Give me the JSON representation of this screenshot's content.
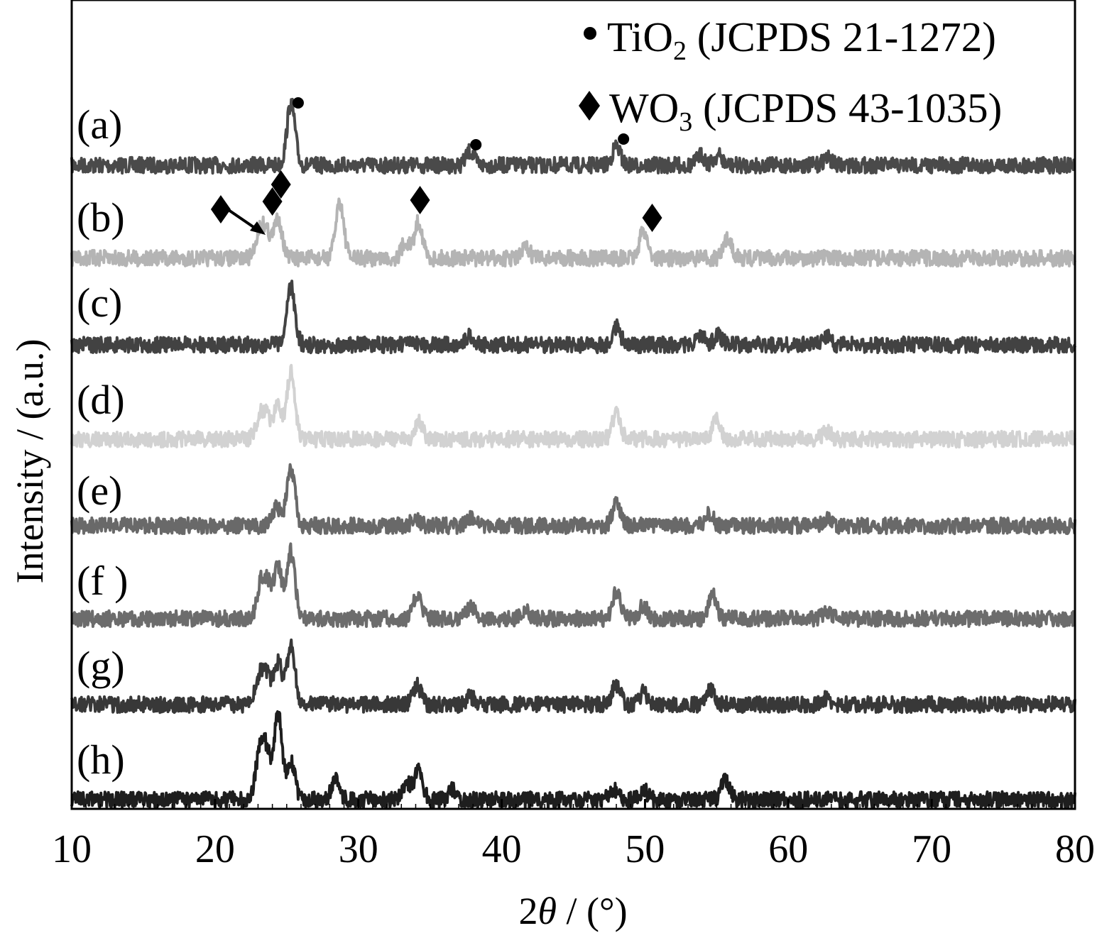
{
  "chart_data": {
    "type": "line",
    "xlabel": {
      "prefix": "2",
      "symbol": "θ",
      "suffix": " / (°)"
    },
    "ylabel": "Intensity / (a.u.)",
    "xlim": [
      10,
      80
    ],
    "x_ticks": [
      10,
      20,
      30,
      40,
      50,
      60,
      70,
      80
    ],
    "x_tick_labels": [
      "10",
      "20",
      "30",
      "40",
      "50",
      "60",
      "70",
      "80"
    ],
    "y_ticks_shown": false,
    "legend": {
      "position": "top-right",
      "entries": [
        {
          "marker": "circle",
          "label_main": "TiO",
          "label_sub": "2",
          "label_rest": " (JCPDS 21-1272)"
        },
        {
          "marker": "diamond",
          "label_main": "WO",
          "label_sub": "3",
          "label_rest": " (JCPDS 43-1035)"
        }
      ]
    },
    "series": [
      {
        "name": "(a)",
        "color": "#4a4a4a",
        "peaks": [
          [
            25.3,
            1.0
          ],
          [
            37.8,
            0.22
          ],
          [
            48.0,
            0.3
          ],
          [
            53.9,
            0.16
          ],
          [
            55.1,
            0.16
          ],
          [
            62.7,
            0.12
          ]
        ]
      },
      {
        "name": "(b)",
        "color": "#b4b4b4",
        "peaks": [
          [
            23.1,
            0.38
          ],
          [
            23.6,
            0.38
          ],
          [
            24.4,
            0.6
          ],
          [
            28.7,
            0.85
          ],
          [
            33.3,
            0.25
          ],
          [
            34.2,
            0.55
          ],
          [
            41.7,
            0.15
          ],
          [
            49.9,
            0.42
          ],
          [
            55.8,
            0.3
          ]
        ]
      },
      {
        "name": "(c)",
        "color": "#424242",
        "peaks": [
          [
            25.3,
            0.95
          ],
          [
            37.8,
            0.15
          ],
          [
            48.0,
            0.3
          ],
          [
            53.9,
            0.18
          ],
          [
            55.1,
            0.15
          ],
          [
            62.7,
            0.14
          ]
        ]
      },
      {
        "name": "(d)",
        "color": "#d2d2d2",
        "peaks": [
          [
            23.1,
            0.28
          ],
          [
            23.6,
            0.28
          ],
          [
            24.4,
            0.45
          ],
          [
            25.3,
            0.9
          ],
          [
            34.2,
            0.22
          ],
          [
            48.0,
            0.35
          ],
          [
            55.0,
            0.25
          ],
          [
            62.7,
            0.1
          ]
        ]
      },
      {
        "name": "(e)",
        "color": "#696969",
        "peaks": [
          [
            24.3,
            0.3
          ],
          [
            25.3,
            0.9
          ],
          [
            34.0,
            0.12
          ],
          [
            37.8,
            0.14
          ],
          [
            48.0,
            0.35
          ],
          [
            54.5,
            0.18
          ],
          [
            62.7,
            0.1
          ]
        ]
      },
      {
        "name": "(f )",
        "color": "#6c6c6c",
        "peaks": [
          [
            23.2,
            0.5
          ],
          [
            23.7,
            0.45
          ],
          [
            24.4,
            0.75
          ],
          [
            25.3,
            1.0
          ],
          [
            34.1,
            0.35
          ],
          [
            37.8,
            0.18
          ],
          [
            41.7,
            0.1
          ],
          [
            48.0,
            0.4
          ],
          [
            49.9,
            0.2
          ],
          [
            54.7,
            0.35
          ],
          [
            62.7,
            0.12
          ]
        ]
      },
      {
        "name": "(g)",
        "color": "#383838",
        "peaks": [
          [
            23.1,
            0.4
          ],
          [
            23.6,
            0.42
          ],
          [
            24.4,
            0.62
          ],
          [
            25.3,
            0.88
          ],
          [
            34.1,
            0.28
          ],
          [
            37.8,
            0.12
          ],
          [
            48.0,
            0.3
          ],
          [
            49.9,
            0.18
          ],
          [
            54.5,
            0.25
          ],
          [
            62.7,
            0.1
          ]
        ]
      },
      {
        "name": "(h)",
        "color": "#1e1e1e",
        "peaks": [
          [
            23.1,
            0.55
          ],
          [
            23.6,
            0.55
          ],
          [
            24.4,
            1.05
          ],
          [
            25.3,
            0.45
          ],
          [
            28.4,
            0.25
          ],
          [
            33.4,
            0.2
          ],
          [
            34.2,
            0.35
          ],
          [
            36.6,
            0.12
          ],
          [
            47.8,
            0.12
          ],
          [
            49.9,
            0.12
          ],
          [
            55.6,
            0.25
          ]
        ]
      }
    ],
    "markers": [
      {
        "type": "circle",
        "x": 25.8,
        "series": "(a)"
      },
      {
        "type": "circle",
        "x": 38.2,
        "series": "(a)"
      },
      {
        "type": "circle",
        "x": 48.5,
        "series": "(a)"
      },
      {
        "type": "diamond",
        "x": 20.4,
        "series": "(b)"
      },
      {
        "type": "diamond",
        "x": 24.0,
        "series": "(b)"
      },
      {
        "type": "diamond",
        "x": 24.6,
        "series": "(b)"
      },
      {
        "type": "diamond",
        "x": 34.3,
        "series": "(b)"
      },
      {
        "type": "diamond",
        "x": 50.5,
        "series": "(b)"
      }
    ]
  }
}
